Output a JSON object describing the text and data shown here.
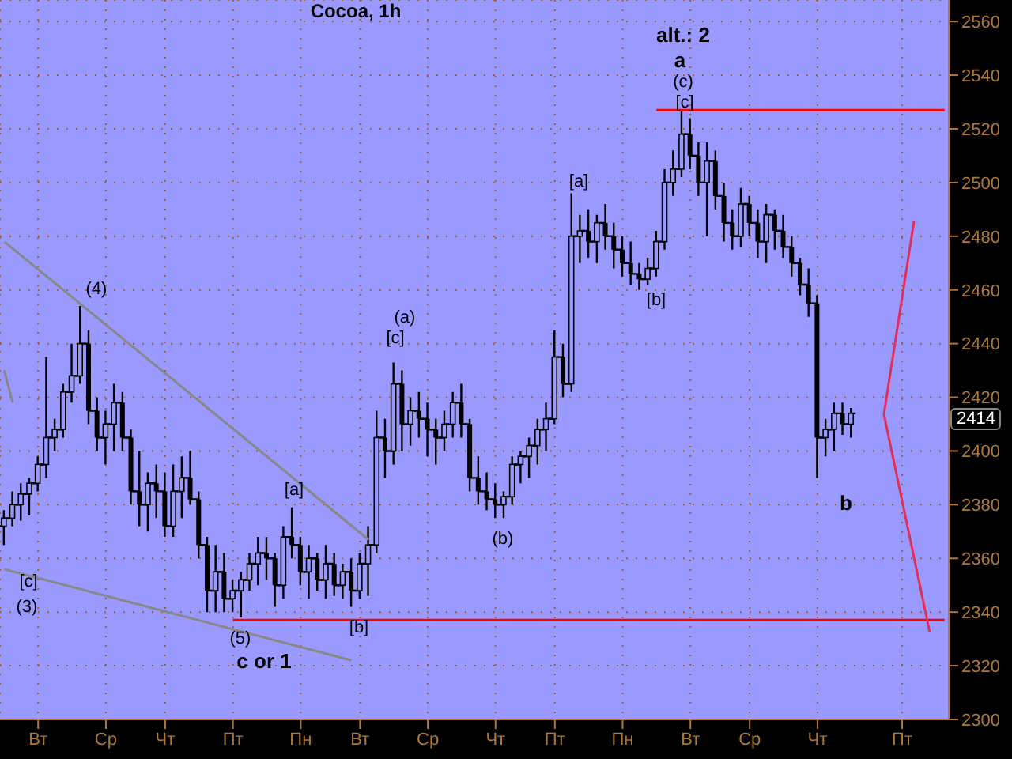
{
  "chart_data": {
    "type": "candlestick",
    "title": "Cocoa, 1h",
    "categories": [
      null,
      null,
      null,
      null,
      "Вт",
      null,
      null,
      null,
      null,
      null,
      null,
      null,
      "Ср",
      null,
      null,
      null,
      null,
      null,
      null,
      "Чт",
      null,
      null,
      null,
      null,
      null,
      null,
      null,
      "Пт",
      null,
      null,
      null,
      null,
      null,
      null,
      null,
      "Пн",
      null,
      null,
      null,
      null,
      null,
      null,
      "Вт",
      null,
      null,
      null,
      null,
      null,
      null,
      null,
      "Ср",
      null,
      null,
      null,
      null,
      null,
      null,
      null,
      "Чт",
      null,
      null,
      null,
      null,
      null,
      null,
      "Пт",
      null,
      null,
      null,
      null,
      null,
      null,
      null,
      "Пн",
      null,
      null,
      null,
      null,
      null,
      null,
      null,
      "Вт",
      null,
      null,
      null,
      null,
      null,
      null,
      "Ср",
      null,
      null,
      null,
      null,
      null,
      null,
      null,
      "Чт",
      null,
      null,
      null,
      null,
      null,
      null,
      null,
      null,
      null,
      "Пт",
      null,
      null,
      null,
      null,
      null
    ],
    "ohlc": [
      [
        2372,
        2378,
        2365,
        2375
      ],
      [
        2375,
        2385,
        2372,
        2380
      ],
      [
        2380,
        2388,
        2374,
        2384
      ],
      [
        2384,
        2390,
        2376,
        2388
      ],
      [
        2388,
        2398,
        2385,
        2395
      ],
      [
        2395,
        2435,
        2390,
        2405
      ],
      [
        2405,
        2412,
        2400,
        2408
      ],
      [
        2408,
        2425,
        2405,
        2422
      ],
      [
        2422,
        2440,
        2418,
        2428
      ],
      [
        2428,
        2454,
        2425,
        2440
      ],
      [
        2440,
        2445,
        2410,
        2415
      ],
      [
        2415,
        2420,
        2400,
        2405
      ],
      [
        2405,
        2415,
        2395,
        2410
      ],
      [
        2410,
        2425,
        2400,
        2418
      ],
      [
        2418,
        2422,
        2400,
        2405
      ],
      [
        2405,
        2408,
        2380,
        2385
      ],
      [
        2385,
        2400,
        2372,
        2380
      ],
      [
        2380,
        2392,
        2370,
        2388
      ],
      [
        2388,
        2395,
        2375,
        2385
      ],
      [
        2385,
        2392,
        2368,
        2372
      ],
      [
        2372,
        2395,
        2368,
        2385
      ],
      [
        2385,
        2398,
        2375,
        2390
      ],
      [
        2390,
        2400,
        2380,
        2382
      ],
      [
        2382,
        2385,
        2360,
        2365
      ],
      [
        2365,
        2368,
        2340,
        2348
      ],
      [
        2348,
        2365,
        2340,
        2355
      ],
      [
        2355,
        2362,
        2340,
        2345
      ],
      [
        2345,
        2352,
        2340,
        2348
      ],
      [
        2348,
        2355,
        2338,
        2352
      ],
      [
        2352,
        2362,
        2348,
        2358
      ],
      [
        2358,
        2368,
        2350,
        2362
      ],
      [
        2362,
        2368,
        2352,
        2360
      ],
      [
        2360,
        2362,
        2342,
        2350
      ],
      [
        2350,
        2372,
        2345,
        2368
      ],
      [
        2368,
        2379,
        2360,
        2365
      ],
      [
        2365,
        2368,
        2350,
        2355
      ],
      [
        2355,
        2365,
        2345,
        2360
      ],
      [
        2360,
        2362,
        2348,
        2352
      ],
      [
        2352,
        2365,
        2345,
        2358
      ],
      [
        2358,
        2362,
        2346,
        2350
      ],
      [
        2350,
        2358,
        2345,
        2355
      ],
      [
        2355,
        2360,
        2342,
        2348
      ],
      [
        2348,
        2362,
        2345,
        2358
      ],
      [
        2358,
        2372,
        2346,
        2365
      ],
      [
        2365,
        2415,
        2362,
        2405
      ],
      [
        2405,
        2412,
        2390,
        2400
      ],
      [
        2400,
        2433,
        2395,
        2425
      ],
      [
        2425,
        2430,
        2400,
        2410
      ],
      [
        2410,
        2420,
        2402,
        2415
      ],
      [
        2415,
        2422,
        2405,
        2412
      ],
      [
        2412,
        2418,
        2398,
        2408
      ],
      [
        2408,
        2412,
        2395,
        2405
      ],
      [
        2405,
        2415,
        2400,
        2410
      ],
      [
        2410,
        2422,
        2405,
        2418
      ],
      [
        2418,
        2425,
        2405,
        2410
      ],
      [
        2410,
        2412,
        2385,
        2390
      ],
      [
        2390,
        2398,
        2380,
        2385
      ],
      [
        2385,
        2392,
        2378,
        2382
      ],
      [
        2382,
        2388,
        2375,
        2380
      ],
      [
        2380,
        2385,
        2375,
        2383
      ],
      [
        2383,
        2398,
        2380,
        2395
      ],
      [
        2395,
        2400,
        2388,
        2398
      ],
      [
        2398,
        2405,
        2390,
        2402
      ],
      [
        2402,
        2412,
        2395,
        2408
      ],
      [
        2408,
        2418,
        2400,
        2412
      ],
      [
        2412,
        2445,
        2410,
        2435
      ],
      [
        2435,
        2440,
        2420,
        2425
      ],
      [
        2425,
        2496,
        2422,
        2480
      ],
      [
        2480,
        2488,
        2470,
        2482
      ],
      [
        2482,
        2490,
        2472,
        2478
      ],
      [
        2478,
        2488,
        2470,
        2485
      ],
      [
        2485,
        2492,
        2475,
        2480
      ],
      [
        2480,
        2485,
        2468,
        2475
      ],
      [
        2475,
        2480,
        2465,
        2470
      ],
      [
        2470,
        2478,
        2462,
        2466
      ],
      [
        2466,
        2470,
        2460,
        2464
      ],
      [
        2464,
        2472,
        2462,
        2468
      ],
      [
        2468,
        2482,
        2465,
        2478
      ],
      [
        2478,
        2505,
        2475,
        2500
      ],
      [
        2500,
        2512,
        2495,
        2505
      ],
      [
        2505,
        2527,
        2502,
        2518
      ],
      [
        2518,
        2524,
        2505,
        2510
      ],
      [
        2510,
        2515,
        2495,
        2500
      ],
      [
        2500,
        2515,
        2480,
        2508
      ],
      [
        2508,
        2512,
        2490,
        2495
      ],
      [
        2495,
        2500,
        2478,
        2485
      ],
      [
        2485,
        2490,
        2475,
        2480
      ],
      [
        2480,
        2498,
        2476,
        2492
      ],
      [
        2492,
        2495,
        2480,
        2485
      ],
      [
        2485,
        2490,
        2472,
        2478
      ],
      [
        2478,
        2492,
        2470,
        2488
      ],
      [
        2488,
        2490,
        2475,
        2482
      ],
      [
        2482,
        2488,
        2472,
        2476
      ],
      [
        2476,
        2480,
        2465,
        2470
      ],
      [
        2470,
        2472,
        2458,
        2462
      ],
      [
        2462,
        2468,
        2450,
        2455
      ],
      [
        2455,
        2458,
        2390,
        2405
      ],
      [
        2405,
        2412,
        2398,
        2408
      ],
      [
        2408,
        2418,
        2400,
        2414
      ],
      [
        2414,
        2418,
        2406,
        2410
      ],
      [
        2410,
        2416,
        2405,
        2414
      ],
      null,
      null,
      null,
      null,
      null,
      null,
      null,
      null,
      null,
      null,
      null
    ],
    "color": "#000000",
    "series": [
      {
        "type": "line",
        "color": "#ff0000",
        "values": [
          null,
          null,
          null,
          null,
          null,
          null,
          null,
          null,
          null,
          null,
          null,
          null,
          null,
          null,
          null,
          null,
          null,
          null,
          null,
          null,
          null,
          null,
          null,
          null,
          null,
          null,
          null,
          null,
          null,
          null,
          null,
          null,
          null,
          null,
          null,
          null,
          null,
          null,
          null,
          null,
          null,
          null,
          null,
          null,
          null,
          null,
          null,
          null,
          null,
          null,
          null,
          null,
          null,
          null,
          null,
          null,
          null,
          null,
          null,
          null,
          null,
          null,
          null,
          null,
          null,
          null,
          null,
          null,
          null,
          null,
          null,
          null,
          null,
          null,
          null,
          null,
          null,
          2527,
          null,
          null,
          null,
          null,
          null,
          null,
          null,
          null,
          null,
          null,
          null,
          null,
          null,
          null,
          null,
          null,
          null,
          null,
          null,
          null,
          null,
          null,
          null,
          null,
          null,
          null,
          null,
          null,
          null,
          null,
          null,
          null,
          null,
          2527
        ]
      },
      {
        "type": "line",
        "color": "#ff0000",
        "values": [
          null,
          null,
          null,
          null,
          null,
          null,
          null,
          null,
          null,
          null,
          null,
          null,
          null,
          null,
          null,
          null,
          null,
          null,
          null,
          null,
          null,
          null,
          null,
          null,
          null,
          null,
          null,
          2337,
          null,
          null,
          null,
          null,
          null,
          null,
          null,
          null,
          null,
          null,
          null,
          null,
          null,
          null,
          null,
          null,
          null,
          null,
          null,
          null,
          null,
          null,
          null,
          null,
          null,
          null,
          null,
          null,
          null,
          null,
          null,
          null,
          null,
          null,
          null,
          null,
          null,
          null,
          null,
          null,
          null,
          null,
          null,
          null,
          null,
          null,
          null,
          null,
          null,
          null,
          null,
          null,
          null,
          null,
          null,
          null,
          null,
          null,
          null,
          null,
          null,
          null,
          null,
          null,
          null,
          null,
          null,
          null,
          null,
          null,
          null,
          null,
          null,
          null,
          null,
          null,
          null,
          null,
          null,
          null,
          null,
          null,
          null,
          2337
        ]
      },
      {
        "type": "line",
        "color": "#888888",
        "values": [
          2478,
          null,
          null,
          null,
          null,
          null,
          null,
          null,
          null,
          null,
          null,
          null,
          null,
          null,
          null,
          null,
          null,
          null,
          null,
          null,
          null,
          null,
          null,
          null,
          null,
          null,
          null,
          null,
          null,
          null,
          null,
          null,
          null,
          null,
          null,
          null,
          null,
          null,
          null,
          null,
          null,
          null,
          null,
          2367,
          null,
          null,
          null,
          null,
          null,
          null,
          null,
          null,
          null,
          null,
          null,
          null,
          null,
          null,
          null,
          null,
          null,
          null,
          null,
          null,
          null,
          null,
          null,
          null,
          null,
          null,
          null,
          null,
          null,
          null,
          null,
          null,
          null,
          null,
          null,
          null,
          null,
          null,
          null,
          null,
          null,
          null,
          null,
          null,
          null,
          null,
          null,
          null,
          null,
          null,
          null,
          null,
          null,
          null,
          null,
          null,
          null,
          null,
          null,
          null,
          null,
          null,
          null,
          null,
          null,
          null,
          null,
          null
        ]
      },
      {
        "type": "line",
        "color": "#888888",
        "values": [
          2356,
          null,
          null,
          null,
          null,
          null,
          null,
          null,
          null,
          null,
          null,
          null,
          null,
          null,
          null,
          null,
          null,
          null,
          null,
          null,
          null,
          null,
          null,
          null,
          null,
          null,
          null,
          null,
          null,
          null,
          null,
          null,
          null,
          null,
          null,
          null,
          null,
          null,
          null,
          null,
          null,
          2322,
          null,
          null,
          null,
          null,
          null,
          null,
          null,
          null,
          null,
          null,
          null,
          null,
          null,
          null,
          null,
          null,
          null,
          null,
          null,
          null,
          null,
          null,
          null,
          null,
          null,
          null,
          null,
          null,
          null,
          null,
          null,
          null,
          null,
          null,
          null,
          null,
          null,
          null,
          null,
          null,
          null,
          null,
          null,
          null,
          null,
          null,
          null,
          null,
          null,
          null,
          null,
          null,
          null,
          null,
          null,
          null,
          null,
          null,
          null,
          null,
          null,
          null,
          null,
          null,
          null,
          null,
          null,
          null,
          null,
          null
        ]
      },
      {
        "type": "line",
        "color": "#888888",
        "values": [
          2430,
          2418,
          null,
          null,
          null,
          null,
          null,
          null,
          null,
          null,
          null,
          null,
          null,
          null,
          null,
          null,
          null,
          null,
          null,
          null,
          null,
          null,
          null,
          null,
          null,
          null,
          null,
          null,
          null,
          null,
          null,
          null,
          null,
          null,
          null,
          null,
          null,
          null,
          null,
          null,
          null,
          null,
          null,
          null,
          null,
          null,
          null,
          null,
          null,
          null,
          null,
          null,
          null,
          null,
          null,
          null,
          null,
          null,
          null,
          null,
          null,
          null,
          null,
          null,
          null,
          null,
          null,
          null,
          null,
          null,
          null,
          null,
          null,
          null,
          null,
          null,
          null,
          null,
          null,
          null,
          null,
          null,
          null,
          null,
          null,
          null,
          null,
          null,
          null,
          null,
          null,
          null,
          null,
          null,
          null,
          null,
          null,
          null,
          null,
          null,
          null,
          null,
          null,
          null,
          null,
          null,
          null,
          null,
          null,
          null,
          null,
          null
        ]
      }
    ],
    "annotations": [
      "(4)",
      "[c]",
      "(3)",
      "(5)",
      "c or 1",
      "[a]",
      "[b]",
      "(a)",
      "[c]",
      "(b)",
      "[a]",
      "[b]",
      "alt.: 2",
      "a",
      "(c)",
      "[c]",
      "b",
      "2414"
    ],
    "ylim": [
      2300,
      2568
    ],
    "yticks": [
      2300,
      2320,
      2340,
      2360,
      2380,
      2400,
      2420,
      2440,
      2460,
      2480,
      2500,
      2520,
      2540,
      2560
    ],
    "grid": true
  }
}
